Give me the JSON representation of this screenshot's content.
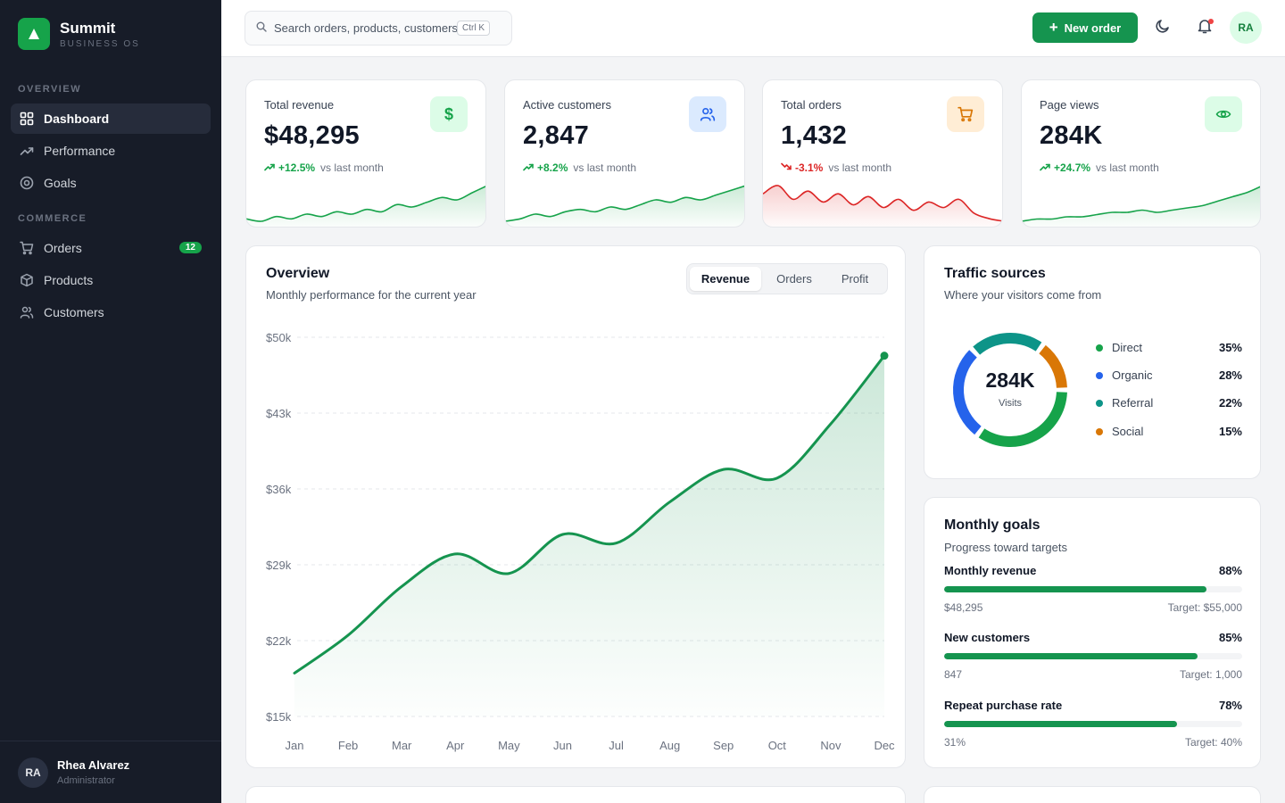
{
  "brand": {
    "title": "Summit",
    "subtitle": "BUSINESS OS"
  },
  "sidebar": {
    "sections": [
      {
        "label": "OVERVIEW",
        "items": [
          {
            "label": "Dashboard",
            "icon": "grid-icon",
            "active": true
          },
          {
            "label": "Performance",
            "icon": "trending-icon"
          },
          {
            "label": "Goals",
            "icon": "target-icon"
          }
        ]
      },
      {
        "label": "COMMERCE",
        "items": [
          {
            "label": "Orders",
            "icon": "cart-icon",
            "badge": "12"
          },
          {
            "label": "Products",
            "icon": "box-icon"
          },
          {
            "label": "Customers",
            "icon": "users-icon"
          }
        ]
      }
    ],
    "user": {
      "initials": "RA",
      "name": "Rhea Alvarez",
      "role": "Administrator"
    }
  },
  "topbar": {
    "search_placeholder": "Search orders, products, customers…",
    "search_shortcut": "Ctrl K",
    "new_order_label": "New order",
    "avatar_initials": "RA"
  },
  "kpis": [
    {
      "label": "Total revenue",
      "value": "$48,295",
      "delta": "+12.5%",
      "vs": "vs last month",
      "trend": "up",
      "icon": "dollar-icon",
      "color": "#16a34a",
      "icon_bg": "#dcfce7",
      "spark": [
        6,
        5,
        7,
        6,
        8,
        7,
        9,
        8,
        10,
        9,
        12,
        11,
        13,
        15,
        14,
        17,
        20
      ]
    },
    {
      "label": "Active customers",
      "value": "2,847",
      "delta": "+8.2%",
      "vs": "vs last month",
      "trend": "up",
      "icon": "users-icon",
      "color": "#16a34a",
      "icon_bg": "#dbeafe",
      "spark": [
        4,
        5,
        7,
        6,
        8,
        9,
        8,
        10,
        9,
        11,
        13,
        12,
        14,
        13,
        15,
        17,
        19
      ]
    },
    {
      "label": "Total orders",
      "value": "1,432",
      "delta": "-3.1%",
      "vs": "vs last month",
      "trend": "down",
      "icon": "cart-icon",
      "color": "#dc2626",
      "icon_bg": "#ffedd5",
      "spark": [
        14,
        17,
        12,
        15,
        11,
        14,
        10,
        13,
        9,
        12,
        8,
        11,
        9,
        12,
        7,
        5,
        4
      ]
    },
    {
      "label": "Page views",
      "value": "284K",
      "delta": "+24.7%",
      "vs": "vs last month",
      "trend": "up",
      "icon": "eye-icon",
      "color": "#16a34a",
      "icon_bg": "#dcfce7",
      "spark": [
        3,
        4,
        4,
        5,
        5,
        6,
        7,
        7,
        8,
        7,
        8,
        9,
        10,
        12,
        14,
        16,
        19
      ]
    }
  ],
  "overview": {
    "title": "Overview",
    "subtitle": "Monthly performance for the current year",
    "tabs": [
      {
        "label": "Revenue",
        "active": true
      },
      {
        "label": "Orders"
      },
      {
        "label": "Profit"
      }
    ]
  },
  "chart_data": {
    "type": "area",
    "title": "Overview",
    "categories": [
      "Jan",
      "Feb",
      "Mar",
      "Apr",
      "May",
      "Jun",
      "Jul",
      "Aug",
      "Sep",
      "Oct",
      "Nov",
      "Dec"
    ],
    "series": [
      {
        "name": "Revenue",
        "values": [
          19000,
          22500,
          27000,
          30000,
          28200,
          31800,
          31000,
          34800,
          37800,
          37000,
          42000,
          48300
        ]
      }
    ],
    "ylim": [
      15000,
      50000
    ],
    "yticks": [
      15000,
      22000,
      29000,
      36000,
      43000,
      50000
    ],
    "ytick_labels": [
      "$15k",
      "$22k",
      "$29k",
      "$36k",
      "$43k",
      "$50k"
    ],
    "grid": true,
    "color": "#15944f"
  },
  "traffic": {
    "title": "Traffic sources",
    "subtitle": "Where your visitors come from",
    "center_value": "284K",
    "center_label": "Visits",
    "chart_data": {
      "type": "pie",
      "labels": [
        "Direct",
        "Organic",
        "Referral",
        "Social"
      ],
      "values": [
        35,
        28,
        22,
        15
      ],
      "value_labels": [
        "35%",
        "28%",
        "22%",
        "15%"
      ],
      "colors": [
        "#16a34a",
        "#2563eb",
        "#0d9488",
        "#d97706"
      ]
    }
  },
  "goals": {
    "title": "Monthly goals",
    "subtitle": "Progress toward targets",
    "items": [
      {
        "name": "Monthly revenue",
        "pct_label": "88%",
        "progress": 0.88,
        "current": "$48,295",
        "target": "Target: $55,000"
      },
      {
        "name": "New customers",
        "pct_label": "85%",
        "progress": 0.85,
        "current": "847",
        "target": "Target: 1,000"
      },
      {
        "name": "Repeat purchase rate",
        "pct_label": "78%",
        "progress": 0.78,
        "current": "31%",
        "target": "Target: 40%"
      }
    ]
  }
}
